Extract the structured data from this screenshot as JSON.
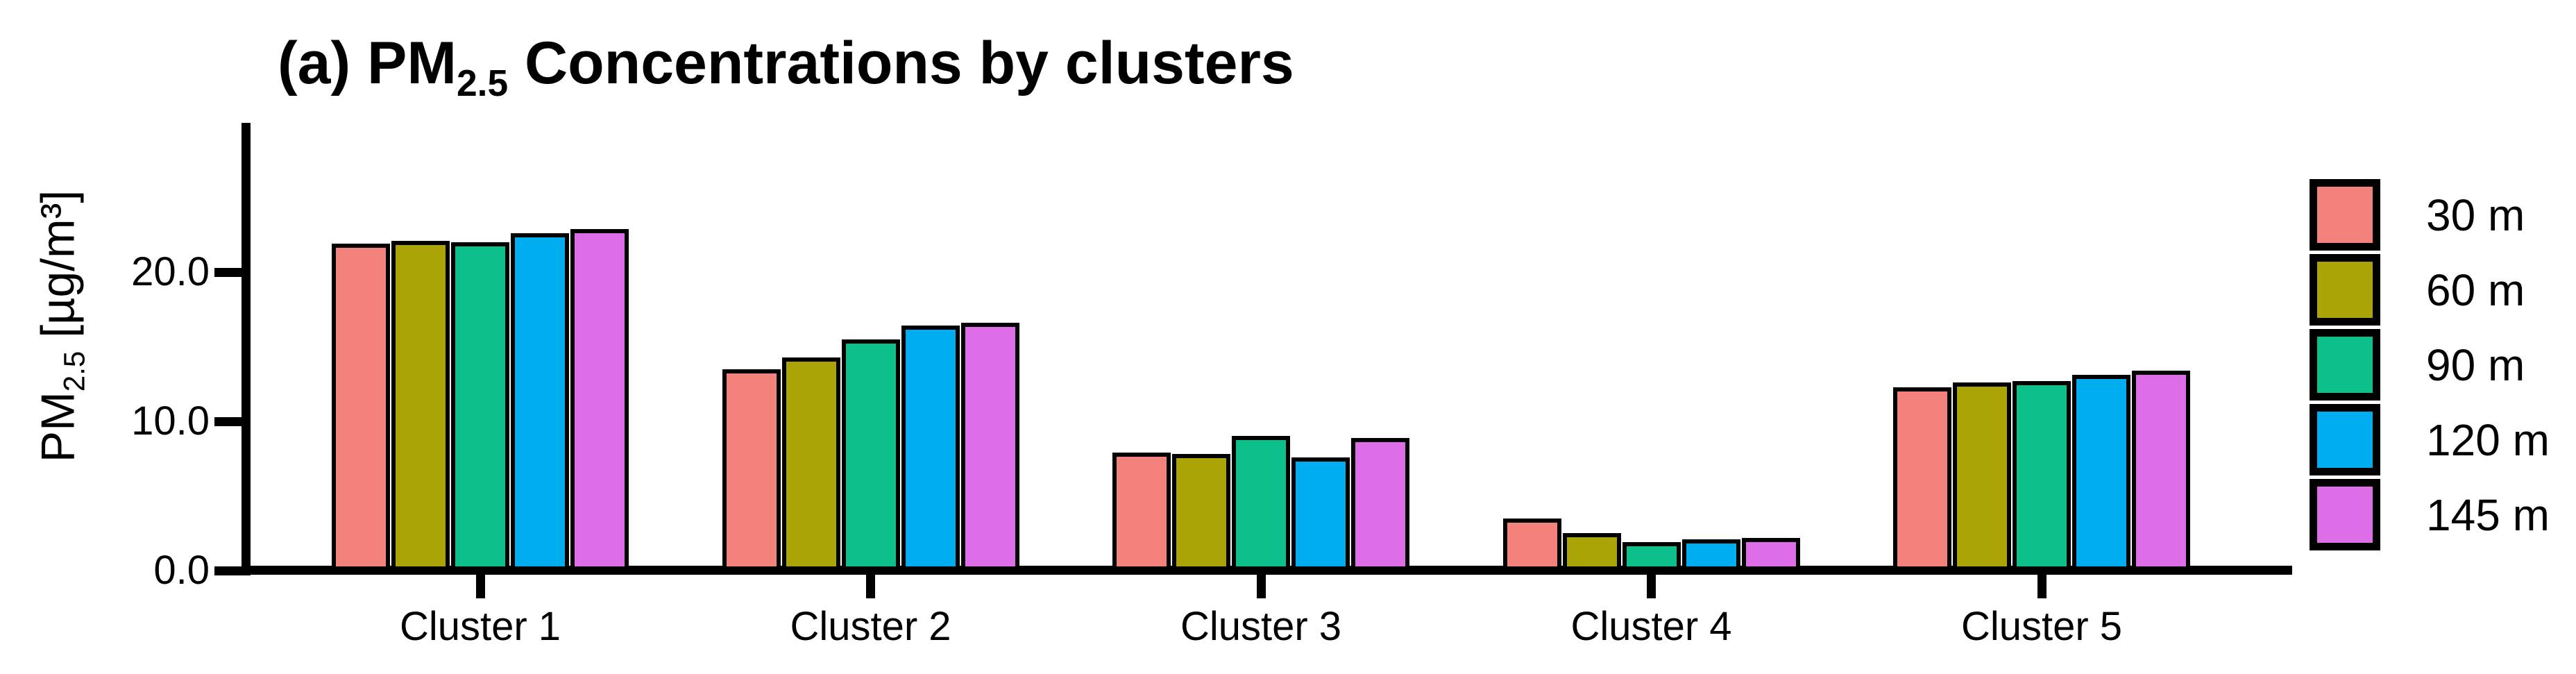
{
  "title": {
    "prefix": "(a) PM",
    "subscript": "2.5",
    "suffix": " Concentrations by clusters"
  },
  "y_axis": {
    "label_prefix": "PM",
    "label_subscript": "2.5",
    "label_suffix": " [µg/m³]",
    "tick_labels": [
      "0.0",
      "10.0",
      "20.0"
    ]
  },
  "chart_data": {
    "type": "bar",
    "title": "(a) PM2.5 Concentrations by clusters",
    "ylabel": "PM2.5 [µg/m³]",
    "xlabel": "",
    "categories": [
      "Cluster 1",
      "Cluster 2",
      "Cluster 3",
      "Cluster 4",
      "Cluster 5"
    ],
    "series": [
      {
        "name": "30 m",
        "color": "#F4827C",
        "values": [
          21.9,
          13.5,
          7.9,
          3.5,
          12.3
        ]
      },
      {
        "name": "60 m",
        "color": "#ABA407",
        "values": [
          22.1,
          14.3,
          7.8,
          2.5,
          12.6
        ]
      },
      {
        "name": "90 m",
        "color": "#0DBF8A",
        "values": [
          22.0,
          15.5,
          9.0,
          1.9,
          12.7
        ]
      },
      {
        "name": "120 m",
        "color": "#00AEEF",
        "values": [
          22.6,
          16.4,
          7.6,
          2.1,
          13.1
        ]
      },
      {
        "name": "145 m",
        "color": "#DE6EE8",
        "values": [
          22.9,
          16.6,
          8.9,
          2.2,
          13.4
        ]
      }
    ],
    "ylim": [
      0,
      30
    ],
    "yticks": [
      0,
      10,
      20
    ],
    "ytick_labels": [
      "0.0",
      "10.0",
      "20.0"
    ],
    "bar_outline_color": "#000000",
    "background_color": "#FFFFFF",
    "grid": false,
    "legend_position": "right"
  }
}
